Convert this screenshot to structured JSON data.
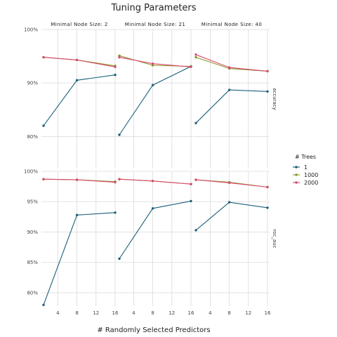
{
  "chart_data": {
    "type": "line",
    "title": "Tuning Parameters",
    "xlabel": "# Randomly Selected Predictors",
    "x_ticks": [
      4,
      8,
      12,
      16
    ],
    "x_range": [
      1,
      16
    ],
    "x": [
      1,
      8,
      16
    ],
    "columns": [
      {
        "label": "Minimal Node Size: 2"
      },
      {
        "label": "Minimal Node Size: 21"
      },
      {
        "label": "Minimal Node Size: 40"
      }
    ],
    "rows": [
      {
        "label": "accuracy",
        "ylim": [
          0.74,
          1.0
        ],
        "y_ticks": [
          {
            "value": 0.8,
            "label": "80%"
          },
          {
            "value": 0.9,
            "label": "90%"
          },
          {
            "value": 1.0,
            "label": "100%"
          }
        ]
      },
      {
        "label": "roc_auc",
        "ylim": [
          0.778,
          1.0
        ],
        "y_ticks": [
          {
            "value": 0.8,
            "label": "80%"
          },
          {
            "value": 0.85,
            "label": "85%"
          },
          {
            "value": 0.9,
            "label": "90%"
          },
          {
            "value": 0.95,
            "label": "95%"
          },
          {
            "value": 1.0,
            "label": "100%"
          }
        ]
      }
    ],
    "legend": {
      "title": "# Trees",
      "position": "right",
      "entries": [
        {
          "name": "1",
          "color": "#1b5f7a"
        },
        {
          "name": "1000",
          "color": "#8a9a2a"
        },
        {
          "name": "2000",
          "color": "#d94a6e"
        }
      ]
    },
    "values": {
      "accuracy": {
        "1": [
          [
            0.82,
            0.905,
            0.915
          ],
          [
            0.803,
            0.896,
            0.931
          ],
          [
            0.825,
            0.887,
            0.884
          ]
        ],
        "1000": [
          [
            0.948,
            0.943,
            0.932
          ],
          [
            0.951,
            0.933,
            0.931
          ],
          [
            0.948,
            0.927,
            0.922
          ]
        ],
        "2000": [
          [
            0.948,
            0.943,
            0.93
          ],
          [
            0.948,
            0.936,
            0.93
          ],
          [
            0.953,
            0.929,
            0.922
          ]
        ]
      },
      "roc_auc": {
        "1": [
          [
            0.78,
            0.928,
            0.932
          ],
          [
            0.856,
            0.939,
            0.951
          ],
          [
            0.903,
            0.949,
            0.94
          ]
        ],
        "1000": [
          [
            0.987,
            0.986,
            0.983
          ],
          [
            0.987,
            0.984,
            0.979
          ],
          [
            0.986,
            0.982,
            0.974
          ]
        ],
        "2000": [
          [
            0.987,
            0.986,
            0.982
          ],
          [
            0.987,
            0.984,
            0.979
          ],
          [
            0.986,
            0.981,
            0.974
          ]
        ]
      }
    }
  }
}
